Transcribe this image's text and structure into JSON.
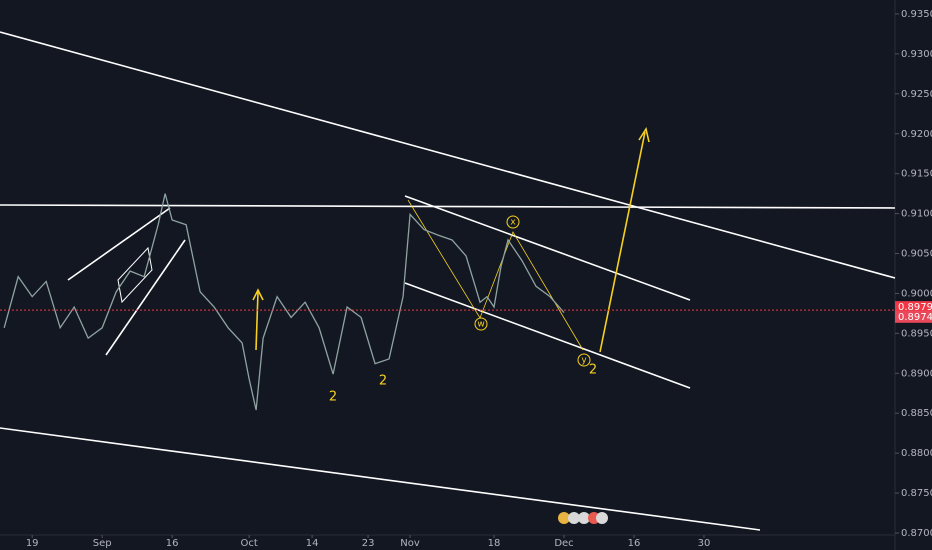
{
  "chart_data": {
    "type": "line",
    "x": [
      -4,
      -2,
      0,
      2,
      4,
      6,
      8,
      10,
      12,
      14,
      16,
      18,
      19,
      20,
      22,
      24,
      26,
      28,
      30,
      31,
      32,
      33,
      35,
      37,
      39,
      41,
      43,
      45,
      47,
      49,
      51,
      53,
      54,
      56,
      58,
      60,
      62,
      64,
      65,
      66,
      67,
      68,
      70,
      72,
      74,
      76
    ],
    "series": [
      {
        "color": "#8fa3a0",
        "values": [
          0.8957,
          0.9021,
          0.8996,
          0.9015,
          0.8957,
          0.8983,
          0.8944,
          0.8957,
          0.9002,
          0.9028,
          0.9021,
          0.9086,
          0.9125,
          0.9092,
          0.9086,
          0.9002,
          0.8983,
          0.8957,
          0.8938,
          0.8893,
          0.8854,
          0.8944,
          0.8996,
          0.897,
          0.8989,
          0.8957,
          0.8899,
          0.8983,
          0.897,
          0.8912,
          0.8918,
          0.8996,
          0.9099,
          0.908,
          0.9073,
          0.9067,
          0.9047,
          0.8989,
          0.8996,
          0.8983,
          0.9034,
          0.9067,
          0.9041,
          0.9009,
          0.8996,
          0.8976
        ]
      }
    ],
    "xlim": [
      -4.6,
      123.3
    ],
    "xticks": [
      {
        "value": 0,
        "label": "19"
      },
      {
        "value": 10,
        "label": "Sep"
      },
      {
        "value": 20,
        "label": "16"
      },
      {
        "value": 31,
        "label": "Oct"
      },
      {
        "value": 40,
        "label": "14"
      },
      {
        "value": 48,
        "label": "23"
      },
      {
        "value": 54,
        "label": "Nov"
      },
      {
        "value": 66,
        "label": "18"
      },
      {
        "value": 76,
        "label": "Dec"
      },
      {
        "value": 86,
        "label": "16"
      },
      {
        "value": 96,
        "label": "30"
      }
    ],
    "ylim": [
      0.86975,
      0.93675
    ],
    "yticks": [
      {
        "value": 0.935,
        "label": "0.93500"
      },
      {
        "value": 0.93,
        "label": "0.93000"
      },
      {
        "value": 0.925,
        "label": "0.92500"
      },
      {
        "value": 0.92,
        "label": "0.92000"
      },
      {
        "value": 0.915,
        "label": "0.91500"
      },
      {
        "value": 0.91,
        "label": "0.91000"
      },
      {
        "value": 0.905,
        "label": "0.90500"
      },
      {
        "value": 0.9,
        "label": "0.90000"
      },
      {
        "value": 0.895,
        "label": "0.89500"
      },
      {
        "value": 0.89,
        "label": "0.89000"
      },
      {
        "value": 0.885,
        "label": "0.88500"
      },
      {
        "value": 0.88,
        "label": "0.88000"
      },
      {
        "value": 0.875,
        "label": "0.87500"
      },
      {
        "value": 0.87,
        "label": "0.87000"
      }
    ],
    "price_labels": [
      {
        "value": 0.89791,
        "label": "0.89791"
      },
      {
        "value": 0.89745,
        "label": "0.89745"
      }
    ],
    "annotations": [
      "2",
      "2",
      "2",
      "w",
      "x",
      "y"
    ]
  }
}
